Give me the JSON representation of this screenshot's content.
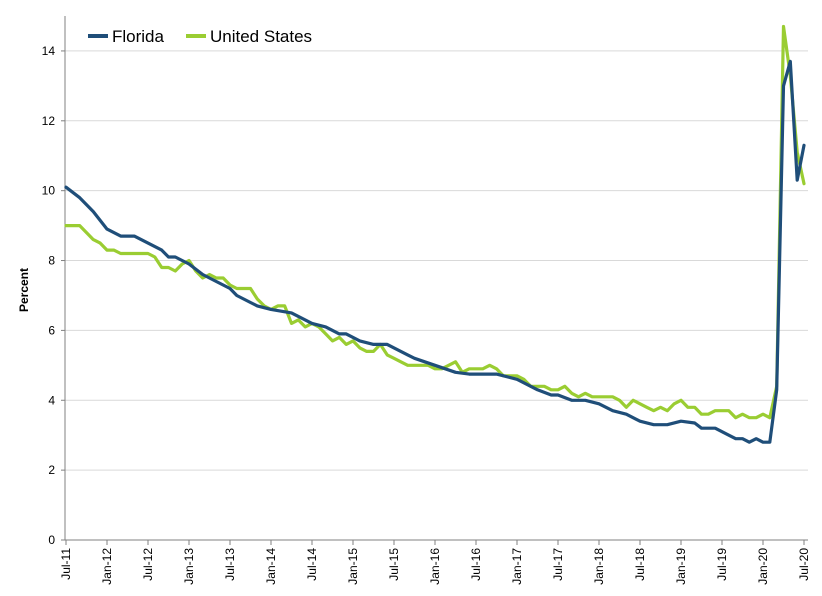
{
  "chart_data": {
    "type": "line",
    "title": "",
    "xlabel": "",
    "ylabel": "Percent",
    "ylim": [
      0,
      15
    ],
    "yticks": [
      0,
      2,
      4,
      6,
      8,
      10,
      12,
      14
    ],
    "grid": "horizontal",
    "legend_position": "top-left",
    "x_tick_labels": [
      "Jul-11",
      "Jan-12",
      "Jul-12",
      "Jan-13",
      "Jul-13",
      "Jan-14",
      "Jul-14",
      "Jan-15",
      "Jul-15",
      "Jan-16",
      "Jul-16",
      "Jan-17",
      "Jul-17",
      "Jan-18",
      "Jul-18",
      "Jan-19",
      "Jul-19",
      "Jan-20",
      "Jul-20"
    ],
    "series": [
      {
        "name": "Florida",
        "color": "#1f4e79",
        "points": [
          [
            "Jul-11",
            10.1
          ],
          [
            "Sep-11",
            9.8
          ],
          [
            "Nov-11",
            9.4
          ],
          [
            "Jan-12",
            8.9
          ],
          [
            "Mar-12",
            8.7
          ],
          [
            "May-12",
            8.7
          ],
          [
            "Jul-12",
            8.5
          ],
          [
            "Sep-12",
            8.3
          ],
          [
            "Oct-12",
            8.1
          ],
          [
            "Nov-12",
            8.1
          ],
          [
            "Jan-13",
            7.9
          ],
          [
            "Mar-13",
            7.6
          ],
          [
            "May-13",
            7.4
          ],
          [
            "Jul-13",
            7.2
          ],
          [
            "Aug-13",
            7.0
          ],
          [
            "Oct-13",
            6.8
          ],
          [
            "Nov-13",
            6.7
          ],
          [
            "Jan-14",
            6.6
          ],
          [
            "Apr-14",
            6.5
          ],
          [
            "Jun-14",
            6.3
          ],
          [
            "Jul-14",
            6.2
          ],
          [
            "Sep-14",
            6.1
          ],
          [
            "Nov-14",
            5.9
          ],
          [
            "Dec-14",
            5.9
          ],
          [
            "Feb-15",
            5.7
          ],
          [
            "Apr-15",
            5.6
          ],
          [
            "Jun-15",
            5.6
          ],
          [
            "Jul-15",
            5.5
          ],
          [
            "Sep-15",
            5.3
          ],
          [
            "Oct-15",
            5.2
          ],
          [
            "Jan-16",
            5.0
          ],
          [
            "Apr-16",
            4.8
          ],
          [
            "Jun-16",
            4.75
          ],
          [
            "Jul-16",
            4.75
          ],
          [
            "Sep-16",
            4.75
          ],
          [
            "Oct-16",
            4.75
          ],
          [
            "Jan-17",
            4.6
          ],
          [
            "Apr-17",
            4.3
          ],
          [
            "Jun-17",
            4.15
          ],
          [
            "Jul-17",
            4.15
          ],
          [
            "Sep-17",
            4.0
          ],
          [
            "Nov-17",
            4.0
          ],
          [
            "Jan-18",
            3.9
          ],
          [
            "Mar-18",
            3.7
          ],
          [
            "May-18",
            3.6
          ],
          [
            "Jul-18",
            3.4
          ],
          [
            "Sep-18",
            3.3
          ],
          [
            "Nov-18",
            3.3
          ],
          [
            "Jan-19",
            3.4
          ],
          [
            "Mar-19",
            3.35
          ],
          [
            "Apr-19",
            3.2
          ],
          [
            "Jun-19",
            3.2
          ],
          [
            "Jul-19",
            3.1
          ],
          [
            "Aug-19",
            3.0
          ],
          [
            "Sep-19",
            2.9
          ],
          [
            "Oct-19",
            2.9
          ],
          [
            "Nov-19",
            2.8
          ],
          [
            "Dec-19",
            2.9
          ],
          [
            "Jan-20",
            2.8
          ],
          [
            "Feb-20",
            2.8
          ],
          [
            "Mar-20",
            4.3
          ],
          [
            "Apr-20",
            13.0
          ],
          [
            "May-20",
            13.7
          ],
          [
            "Jun-20",
            10.3
          ],
          [
            "Jul-20",
            11.3
          ]
        ]
      },
      {
        "name": "United States",
        "color": "#9acd32",
        "points": [
          [
            "Jul-11",
            9.0
          ],
          [
            "Sep-11",
            9.0
          ],
          [
            "Oct-11",
            8.8
          ],
          [
            "Nov-11",
            8.6
          ],
          [
            "Dec-11",
            8.5
          ],
          [
            "Jan-12",
            8.3
          ],
          [
            "Feb-12",
            8.3
          ],
          [
            "Mar-12",
            8.2
          ],
          [
            "Jul-12",
            8.2
          ],
          [
            "Aug-12",
            8.1
          ],
          [
            "Sep-12",
            7.8
          ],
          [
            "Oct-12",
            7.8
          ],
          [
            "Nov-12",
            7.7
          ],
          [
            "Dec-12",
            7.9
          ],
          [
            "Jan-13",
            8.0
          ],
          [
            "Feb-13",
            7.7
          ],
          [
            "Mar-13",
            7.5
          ],
          [
            "Apr-13",
            7.6
          ],
          [
            "May-13",
            7.5
          ],
          [
            "Jun-13",
            7.5
          ],
          [
            "Jul-13",
            7.3
          ],
          [
            "Aug-13",
            7.2
          ],
          [
            "Oct-13",
            7.2
          ],
          [
            "Nov-13",
            6.9
          ],
          [
            "Dec-13",
            6.7
          ],
          [
            "Jan-14",
            6.6
          ],
          [
            "Feb-14",
            6.7
          ],
          [
            "Mar-14",
            6.7
          ],
          [
            "Apr-14",
            6.2
          ],
          [
            "May-14",
            6.3
          ],
          [
            "Jun-14",
            6.1
          ],
          [
            "Jul-14",
            6.2
          ],
          [
            "Aug-14",
            6.1
          ],
          [
            "Sep-14",
            5.9
          ],
          [
            "Oct-14",
            5.7
          ],
          [
            "Nov-14",
            5.8
          ],
          [
            "Dec-14",
            5.6
          ],
          [
            "Jan-15",
            5.7
          ],
          [
            "Feb-15",
            5.5
          ],
          [
            "Mar-15",
            5.4
          ],
          [
            "Apr-15",
            5.4
          ],
          [
            "May-15",
            5.6
          ],
          [
            "Jun-15",
            5.3
          ],
          [
            "Jul-15",
            5.2
          ],
          [
            "Aug-15",
            5.1
          ],
          [
            "Sep-15",
            5.0
          ],
          [
            "Oct-15",
            5.0
          ],
          [
            "Nov-15",
            5.0
          ],
          [
            "Dec-15",
            5.0
          ],
          [
            "Jan-16",
            4.9
          ],
          [
            "Feb-16",
            4.9
          ],
          [
            "Mar-16",
            5.0
          ],
          [
            "Apr-16",
            5.1
          ],
          [
            "May-16",
            4.8
          ],
          [
            "Jun-16",
            4.9
          ],
          [
            "Jul-16",
            4.9
          ],
          [
            "Aug-16",
            4.9
          ],
          [
            "Sep-16",
            5.0
          ],
          [
            "Oct-16",
            4.9
          ],
          [
            "Nov-16",
            4.7
          ],
          [
            "Dec-16",
            4.7
          ],
          [
            "Jan-17",
            4.7
          ],
          [
            "Feb-17",
            4.6
          ],
          [
            "Mar-17",
            4.4
          ],
          [
            "Apr-17",
            4.4
          ],
          [
            "May-17",
            4.4
          ],
          [
            "Jun-17",
            4.3
          ],
          [
            "Jul-17",
            4.3
          ],
          [
            "Aug-17",
            4.4
          ],
          [
            "Sep-17",
            4.2
          ],
          [
            "Oct-17",
            4.1
          ],
          [
            "Nov-17",
            4.2
          ],
          [
            "Dec-17",
            4.1
          ],
          [
            "Jan-18",
            4.1
          ],
          [
            "Feb-18",
            4.1
          ],
          [
            "Mar-18",
            4.1
          ],
          [
            "Apr-18",
            4.0
          ],
          [
            "May-18",
            3.8
          ],
          [
            "Jun-18",
            4.0
          ],
          [
            "Jul-18",
            3.9
          ],
          [
            "Aug-18",
            3.8
          ],
          [
            "Sep-18",
            3.7
          ],
          [
            "Oct-18",
            3.8
          ],
          [
            "Nov-18",
            3.7
          ],
          [
            "Dec-18",
            3.9
          ],
          [
            "Jan-19",
            4.0
          ],
          [
            "Feb-19",
            3.8
          ],
          [
            "Mar-19",
            3.8
          ],
          [
            "Apr-19",
            3.6
          ],
          [
            "May-19",
            3.6
          ],
          [
            "Jun-19",
            3.7
          ],
          [
            "Jul-19",
            3.7
          ],
          [
            "Aug-19",
            3.7
          ],
          [
            "Sep-19",
            3.5
          ],
          [
            "Oct-19",
            3.6
          ],
          [
            "Nov-19",
            3.5
          ],
          [
            "Dec-19",
            3.5
          ],
          [
            "Jan-20",
            3.6
          ],
          [
            "Feb-20",
            3.5
          ],
          [
            "Mar-20",
            4.4
          ],
          [
            "Apr-20",
            14.7
          ],
          [
            "May-20",
            13.3
          ],
          [
            "Jun-20",
            11.1
          ],
          [
            "Jul-20",
            10.2
          ]
        ]
      }
    ]
  }
}
